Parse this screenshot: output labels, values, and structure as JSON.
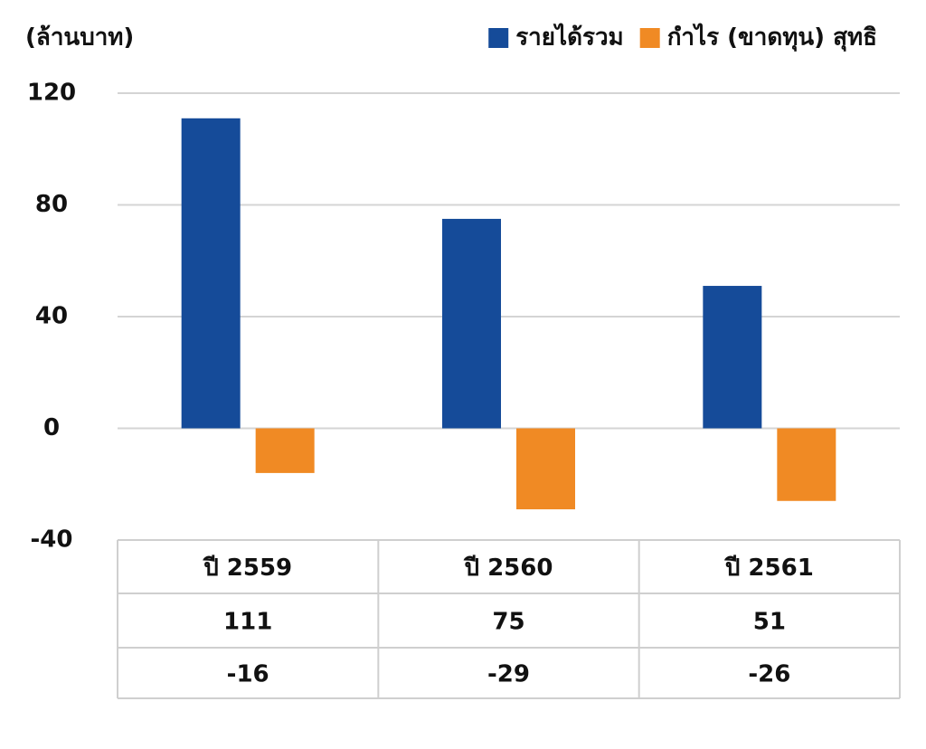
{
  "chart_data": {
    "type": "bar",
    "unit_label": "(ล้านบาท)",
    "categories": [
      "ปี 2559",
      "ปี 2560",
      "ปี 2561"
    ],
    "series": [
      {
        "name": "รายได้รวม",
        "color": "#154b99",
        "values": [
          111,
          75,
          51
        ]
      },
      {
        "name": "กำไร (ขาดทุน) สุทธิ",
        "color": "#f08a24",
        "values": [
          -16,
          -29,
          -26
        ]
      }
    ],
    "ylim": [
      -40,
      120
    ],
    "yticks": [
      -40,
      0,
      40,
      80,
      120
    ],
    "grid": true,
    "legend": "top-right"
  }
}
